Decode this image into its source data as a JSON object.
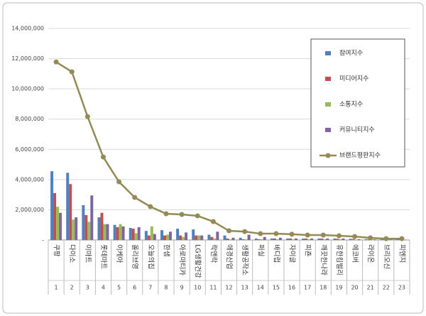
{
  "chart_data": {
    "type": "bar",
    "categories": [
      "쿠팡",
      "다이소",
      "이마트",
      "롯데마트",
      "이케아",
      "올리브영",
      "오늘의집",
      "한샘",
      "아로마티카",
      "LG생활건강",
      "락앤락",
      "애경산업",
      "생활공작소",
      "퍼실",
      "바디럽",
      "자이글",
      "피죤",
      "깨끗한나라",
      "유한킴벌리",
      "에코버",
      "라이온",
      "브리오신",
      "피엔지"
    ],
    "ranks": [
      1,
      2,
      3,
      4,
      5,
      6,
      7,
      8,
      9,
      10,
      11,
      12,
      13,
      14,
      15,
      16,
      17,
      18,
      19,
      20,
      21,
      22,
      23
    ],
    "series": [
      {
        "name": "참여지수",
        "color": "#4f81bd",
        "values": [
          4550000,
          4450000,
          2300000,
          1500000,
          1000000,
          800000,
          600000,
          650000,
          750000,
          700000,
          350000,
          300000,
          150000,
          100000,
          100000,
          100000,
          100000,
          100000,
          100000,
          80000,
          60000,
          50000,
          50000
        ]
      },
      {
        "name": "미디어지수",
        "color": "#c0504d",
        "values": [
          3100000,
          3700000,
          1650000,
          1800000,
          850000,
          750000,
          300000,
          300000,
          300000,
          300000,
          200000,
          100000,
          50000,
          50000,
          100000,
          100000,
          100000,
          100000,
          80000,
          60000,
          40000,
          30000,
          30000
        ]
      },
      {
        "name": "소통지수",
        "color": "#9bbb59",
        "values": [
          2200000,
          1350000,
          1200000,
          1050000,
          1050000,
          450000,
          900000,
          350000,
          200000,
          300000,
          100000,
          50000,
          50000,
          50000,
          50000,
          50000,
          50000,
          50000,
          50000,
          30000,
          20000,
          20000,
          10000
        ]
      },
      {
        "name": "커뮤니티지수",
        "color": "#8064a2",
        "values": [
          1800000,
          1500000,
          2950000,
          1050000,
          900000,
          850000,
          400000,
          550000,
          500000,
          300000,
          550000,
          150000,
          350000,
          200000,
          150000,
          100000,
          100000,
          100000,
          100000,
          60000,
          40000,
          30000,
          20000
        ]
      },
      {
        "name": "브랜드평판지수",
        "color": "#948a54",
        "type": "line",
        "values": [
          11780000,
          11130000,
          8170000,
          5490000,
          3850000,
          2820000,
          2210000,
          1740000,
          1690000,
          1600000,
          1220000,
          610000,
          560000,
          420000,
          420000,
          380000,
          330000,
          330000,
          280000,
          230000,
          140000,
          90000,
          90000
        ]
      }
    ],
    "ylim": [
      0,
      14000000
    ],
    "yticks": [
      {
        "value": 0,
        "label": "-"
      },
      {
        "value": 2000000,
        "label": "2,000,000"
      },
      {
        "value": 4000000,
        "label": "4,000,000"
      },
      {
        "value": 6000000,
        "label": "6,000,000"
      },
      {
        "value": 8000000,
        "label": "8,000,000"
      },
      {
        "value": 10000000,
        "label": "10,000,000"
      },
      {
        "value": 12000000,
        "label": "12,000,000"
      },
      {
        "value": 14000000,
        "label": "14,000,000"
      }
    ],
    "grid": true,
    "legend": "top-right"
  }
}
